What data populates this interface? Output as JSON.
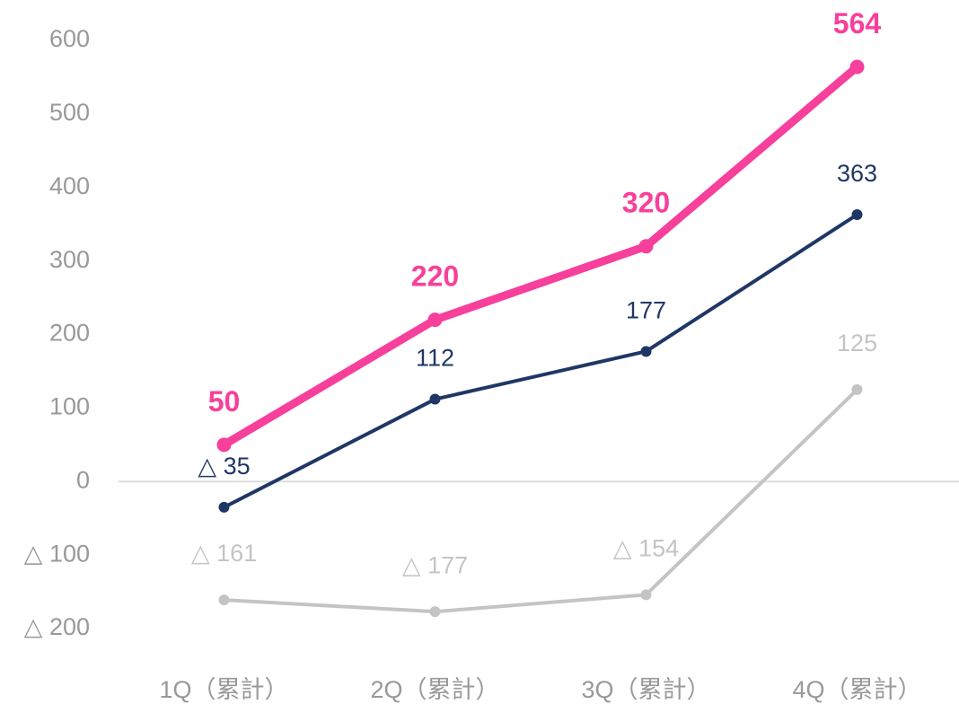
{
  "chart_data": {
    "type": "line",
    "categories": [
      "1Q（累計）",
      "2Q（累計）",
      "3Q（累計）",
      "4Q（累計）"
    ],
    "series": [
      {
        "color": "#f7409b",
        "values": [
          50,
          220,
          320,
          564
        ]
      },
      {
        "color": "#1f3764",
        "values": [
          -35,
          112,
          177,
          363
        ],
        "value_labels": [
          "△ 35",
          "112",
          "177",
          "363"
        ]
      },
      {
        "color": "#c4c4c4",
        "values": [
          -161,
          -177,
          -154,
          125
        ],
        "value_labels": [
          "△ 161",
          "△ 177",
          "△ 154",
          "125"
        ]
      }
    ],
    "ylim": [
      -200,
      600
    ],
    "yticks": [
      {
        "value": -200,
        "label": "△ 200"
      },
      {
        "value": -100,
        "label": "△ 100"
      },
      0,
      100,
      200,
      300,
      400,
      500,
      600
    ],
    "zero_line": true
  }
}
